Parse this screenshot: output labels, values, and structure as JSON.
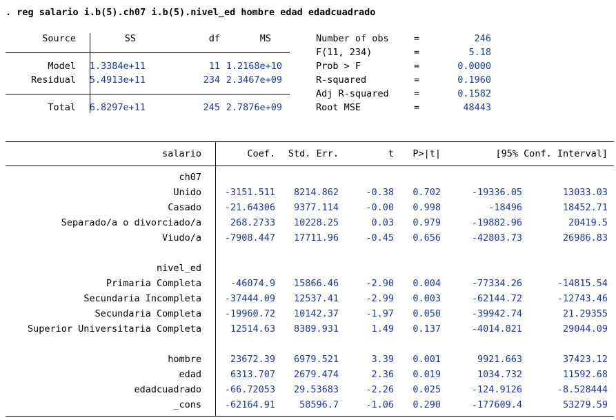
{
  "colors": {
    "result_blue": "#1a34b8",
    "text_black": "#000000",
    "background": "#ffffff"
  },
  "command": ". reg salario i.b(5).ch07 i.b(5).nivel_ed hombre edad edadcuadrado",
  "anova": {
    "header": {
      "source": "Source",
      "ss": "SS",
      "df": "df",
      "ms": "MS"
    },
    "model": {
      "label": "Model",
      "ss": "1.3384e+11",
      "df": "11",
      "ms": "1.2168e+10"
    },
    "residual": {
      "label": "Residual",
      "ss": "5.4913e+11",
      "df": "234",
      "ms": "2.3467e+09"
    },
    "total": {
      "label": "Total",
      "ss": "6.8297e+11",
      "df": "245",
      "ms": "2.7876e+09"
    }
  },
  "stats": {
    "rows": [
      {
        "label": "Number of obs",
        "eq": "=",
        "value": "246"
      },
      {
        "label": "F(11, 234)",
        "eq": "=",
        "value": "5.18"
      },
      {
        "label": "Prob > F",
        "eq": "=",
        "value": "0.0000"
      },
      {
        "label": "R-squared",
        "eq": "=",
        "value": "0.1960"
      },
      {
        "label": "Adj R-squared",
        "eq": "=",
        "value": "0.1582"
      },
      {
        "label": "Root MSE",
        "eq": "=",
        "value": "48443"
      }
    ]
  },
  "coef_table": {
    "header": {
      "depvar": "salario",
      "coef": "Coef.",
      "se": "Std. Err.",
      "t": "t",
      "p": "P>|t|",
      "ci": "[95% Conf. Interval]"
    },
    "rows": [
      {
        "type": "group",
        "label": "ch07"
      },
      {
        "type": "data",
        "label": "Unido",
        "coef": "-3151.511",
        "se": "8214.862",
        "t": "-0.38",
        "p": "0.702",
        "ci_lo": "-19336.05",
        "ci_hi": "13033.03"
      },
      {
        "type": "data",
        "label": "Casado",
        "coef": "-21.64306",
        "se": "9377.114",
        "t": "-0.00",
        "p": "0.998",
        "ci_lo": "-18496",
        "ci_hi": "18452.71"
      },
      {
        "type": "data",
        "label": "Separado/a o divorciado/a",
        "coef": "268.2733",
        "se": "10228.25",
        "t": "0.03",
        "p": "0.979",
        "ci_lo": "-19882.96",
        "ci_hi": "20419.5"
      },
      {
        "type": "data",
        "label": "Viudo/a",
        "coef": "-7908.447",
        "se": "17711.96",
        "t": "-0.45",
        "p": "0.656",
        "ci_lo": "-42803.73",
        "ci_hi": "26986.83"
      },
      {
        "type": "spacer",
        "label": ""
      },
      {
        "type": "group",
        "label": "nivel_ed"
      },
      {
        "type": "data",
        "label": "Primaria Completa",
        "coef": "-46074.9",
        "se": "15866.46",
        "t": "-2.90",
        "p": "0.004",
        "ci_lo": "-77334.26",
        "ci_hi": "-14815.54"
      },
      {
        "type": "data",
        "label": "Secundaria Incompleta",
        "coef": "-37444.09",
        "se": "12537.41",
        "t": "-2.99",
        "p": "0.003",
        "ci_lo": "-62144.72",
        "ci_hi": "-12743.46"
      },
      {
        "type": "data",
        "label": "Secundaria Completa",
        "coef": "-19960.72",
        "se": "10142.37",
        "t": "-1.97",
        "p": "0.050",
        "ci_lo": "-39942.74",
        "ci_hi": "21.29355"
      },
      {
        "type": "data",
        "label": "Superior Universitaria Completa",
        "coef": "12514.63",
        "se": "8389.931",
        "t": "1.49",
        "p": "0.137",
        "ci_lo": "-4014.821",
        "ci_hi": "29044.09"
      },
      {
        "type": "spacer",
        "label": ""
      },
      {
        "type": "data",
        "label": "hombre",
        "coef": "23672.39",
        "se": "6979.521",
        "t": "3.39",
        "p": "0.001",
        "ci_lo": "9921.663",
        "ci_hi": "37423.12"
      },
      {
        "type": "data",
        "label": "edad",
        "coef": "6313.707",
        "se": "2679.474",
        "t": "2.36",
        "p": "0.019",
        "ci_lo": "1034.732",
        "ci_hi": "11592.68"
      },
      {
        "type": "data",
        "label": "edadcuadrado",
        "coef": "-66.72053",
        "se": "29.53683",
        "t": "-2.26",
        "p": "0.025",
        "ci_lo": "-124.9126",
        "ci_hi": "-8.528444"
      },
      {
        "type": "data",
        "label": "_cons",
        "coef": "-62164.91",
        "se": "58596.7",
        "t": "-1.06",
        "p": "0.290",
        "ci_lo": "-177609.4",
        "ci_hi": "53279.59"
      }
    ]
  }
}
